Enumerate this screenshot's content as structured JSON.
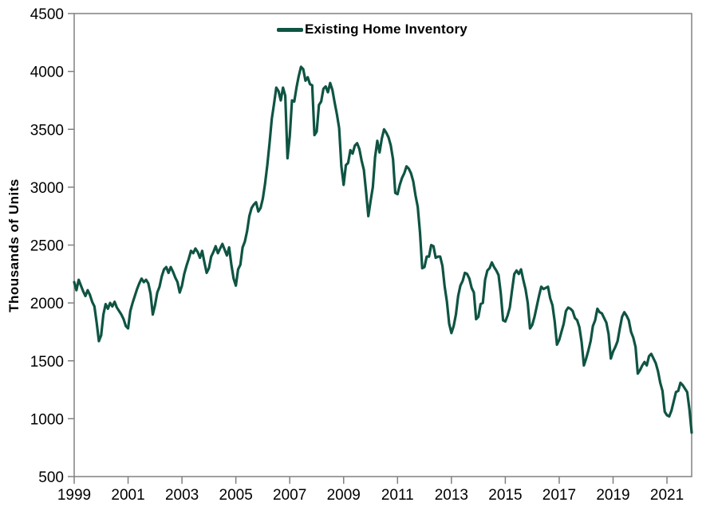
{
  "chart_data": {
    "type": "line",
    "title": "",
    "xlabel": "",
    "ylabel": "Thousands of Units",
    "legend": {
      "label": "Existing Home Inventory",
      "position": "top-center"
    },
    "ylim": [
      500,
      4500
    ],
    "yticks": [
      500,
      1000,
      1500,
      2000,
      2500,
      3000,
      3500,
      4000,
      4500
    ],
    "xticks": [
      1999,
      2001,
      2003,
      2005,
      2007,
      2009,
      2011,
      2013,
      2015,
      2017,
      2019,
      2021
    ],
    "grid": false,
    "plot_border": true,
    "series": [
      {
        "name": "Existing Home Inventory",
        "color": "#0f5443",
        "frequency": "monthly",
        "start": "1999-01",
        "end": "2021-12",
        "units": "thousands",
        "values": [
          2180,
          2110,
          2200,
          2150,
          2100,
          2060,
          2110,
          2070,
          2010,
          1970,
          1830,
          1670,
          1720,
          1900,
          1990,
          1950,
          2000,
          1970,
          2010,
          1960,
          1930,
          1900,
          1860,
          1800,
          1780,
          1930,
          2000,
          2060,
          2120,
          2170,
          2210,
          2180,
          2200,
          2170,
          2080,
          1900,
          1980,
          2090,
          2140,
          2230,
          2290,
          2310,
          2260,
          2310,
          2270,
          2220,
          2180,
          2090,
          2150,
          2250,
          2320,
          2380,
          2450,
          2430,
          2470,
          2440,
          2390,
          2450,
          2350,
          2260,
          2300,
          2400,
          2440,
          2490,
          2430,
          2470,
          2510,
          2460,
          2410,
          2480,
          2330,
          2210,
          2150,
          2290,
          2330,
          2480,
          2530,
          2620,
          2750,
          2820,
          2850,
          2870,
          2790,
          2820,
          2900,
          3030,
          3190,
          3380,
          3590,
          3720,
          3860,
          3830,
          3750,
          3860,
          3790,
          3250,
          3440,
          3750,
          3740,
          3860,
          3960,
          4040,
          4020,
          3920,
          3950,
          3890,
          3880,
          3450,
          3480,
          3710,
          3740,
          3850,
          3870,
          3820,
          3900,
          3840,
          3730,
          3630,
          3510,
          3180,
          3020,
          3190,
          3210,
          3320,
          3290,
          3360,
          3380,
          3330,
          3230,
          3150,
          2960,
          2750,
          2880,
          3000,
          3260,
          3400,
          3300,
          3420,
          3500,
          3470,
          3430,
          3360,
          3240,
          2950,
          2940,
          3020,
          3080,
          3120,
          3180,
          3160,
          3120,
          3050,
          2930,
          2830,
          2610,
          2300,
          2310,
          2400,
          2400,
          2500,
          2490,
          2390,
          2400,
          2400,
          2320,
          2140,
          2010,
          1820,
          1740,
          1800,
          1900,
          2060,
          2150,
          2190,
          2260,
          2250,
          2210,
          2130,
          2090,
          1860,
          1880,
          1990,
          2000,
          2200,
          2280,
          2300,
          2350,
          2310,
          2280,
          2240,
          2080,
          1850,
          1840,
          1890,
          1960,
          2110,
          2250,
          2280,
          2250,
          2290,
          2200,
          2120,
          2000,
          1780,
          1810,
          1880,
          1970,
          2060,
          2140,
          2120,
          2130,
          2140,
          2040,
          1980,
          1840,
          1640,
          1680,
          1750,
          1820,
          1930,
          1960,
          1950,
          1930,
          1870,
          1850,
          1790,
          1660,
          1460,
          1520,
          1590,
          1670,
          1800,
          1850,
          1950,
          1920,
          1910,
          1870,
          1830,
          1730,
          1520,
          1580,
          1620,
          1670,
          1780,
          1880,
          1920,
          1890,
          1850,
          1750,
          1700,
          1620,
          1390,
          1420,
          1460,
          1490,
          1460,
          1540,
          1560,
          1520,
          1480,
          1410,
          1310,
          1240,
          1060,
          1030,
          1020,
          1070,
          1150,
          1230,
          1240,
          1310,
          1290,
          1260,
          1230,
          1080,
          880
        ]
      }
    ]
  },
  "style": {
    "axis_color": "#808080",
    "text_color": "#000000",
    "background": "#ffffff"
  }
}
